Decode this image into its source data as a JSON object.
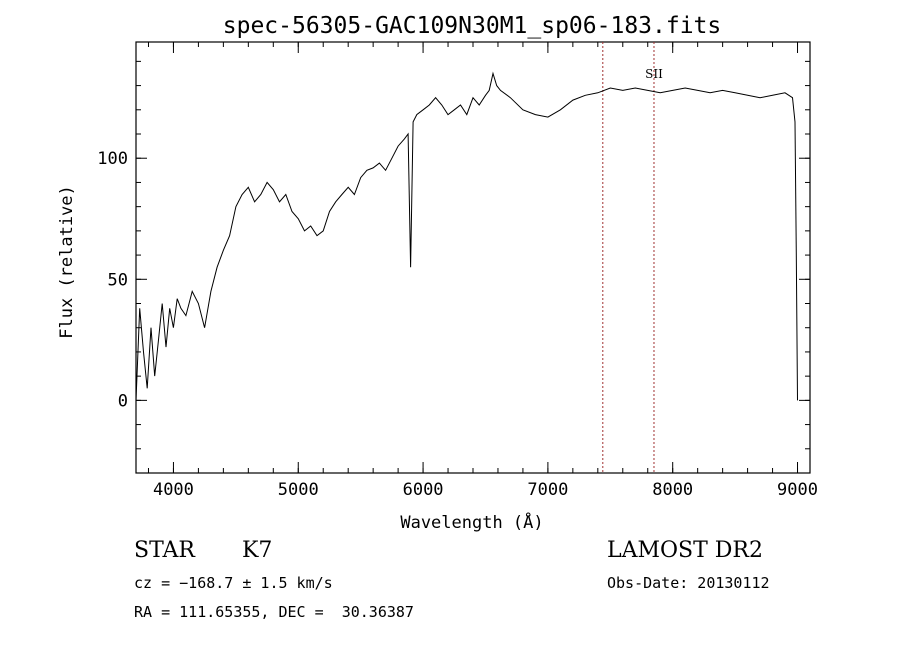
{
  "chart_data": {
    "type": "line",
    "title": "spec-56305-GAC109N30M1_sp06-183.fits",
    "xlabel": "Wavelength (Å)",
    "ylabel": "Flux (relative)",
    "xlim": [
      3700,
      9100
    ],
    "ylim": [
      -30,
      148
    ],
    "x_ticks": [
      4000,
      5000,
      6000,
      7000,
      8000,
      9000
    ],
    "y_ticks": [
      0,
      50,
      100
    ],
    "x_minor_step": 200,
    "y_minor_step": 10,
    "grid": false,
    "series": [
      {
        "color": "#000000",
        "x": [
          3700,
          3730,
          3760,
          3790,
          3820,
          3850,
          3880,
          3910,
          3940,
          3970,
          4000,
          4030,
          4060,
          4100,
          4150,
          4200,
          4250,
          4300,
          4350,
          4400,
          4450,
          4500,
          4550,
          4600,
          4650,
          4700,
          4750,
          4800,
          4850,
          4900,
          4950,
          5000,
          5050,
          5100,
          5150,
          5200,
          5250,
          5300,
          5350,
          5400,
          5450,
          5500,
          5550,
          5600,
          5650,
          5700,
          5750,
          5800,
          5850,
          5880,
          5900,
          5920,
          5950,
          6000,
          6050,
          6100,
          6150,
          6200,
          6250,
          6300,
          6350,
          6400,
          6450,
          6500,
          6530,
          6560,
          6590,
          6620,
          6700,
          6800,
          6900,
          7000,
          7100,
          7200,
          7300,
          7400,
          7500,
          7600,
          7700,
          7800,
          7900,
          8000,
          8100,
          8200,
          8300,
          8400,
          8500,
          8600,
          8700,
          8800,
          8900,
          8960,
          8980,
          8990,
          9000
        ],
        "y": [
          0,
          38,
          20,
          5,
          30,
          10,
          25,
          40,
          22,
          38,
          30,
          42,
          38,
          35,
          45,
          40,
          30,
          45,
          55,
          62,
          68,
          80,
          85,
          88,
          82,
          85,
          90,
          87,
          82,
          85,
          78,
          75,
          70,
          72,
          68,
          70,
          78,
          82,
          85,
          88,
          85,
          92,
          95,
          96,
          98,
          95,
          100,
          105,
          108,
          110,
          55,
          115,
          118,
          120,
          122,
          125,
          122,
          118,
          120,
          122,
          118,
          125,
          122,
          126,
          128,
          135,
          130,
          128,
          125,
          120,
          118,
          117,
          120,
          124,
          126,
          127,
          129,
          128,
          129,
          128,
          127,
          128,
          129,
          128,
          127,
          128,
          127,
          126,
          125,
          126,
          127,
          125,
          115,
          60,
          0
        ]
      }
    ],
    "vlines": [
      {
        "x": 7440,
        "color": "#a03030"
      },
      {
        "x": 7850,
        "color": "#a03030",
        "label": "SII"
      }
    ]
  },
  "info": {
    "obj_class": "STAR",
    "subclass": "K7",
    "survey": "LAMOST DR2",
    "cz": "cz = −168.7 ± 1.5 km/s",
    "obs_date": "Obs-Date: 20130112",
    "radec": "RA = 111.65355, DEC =  30.36387"
  }
}
